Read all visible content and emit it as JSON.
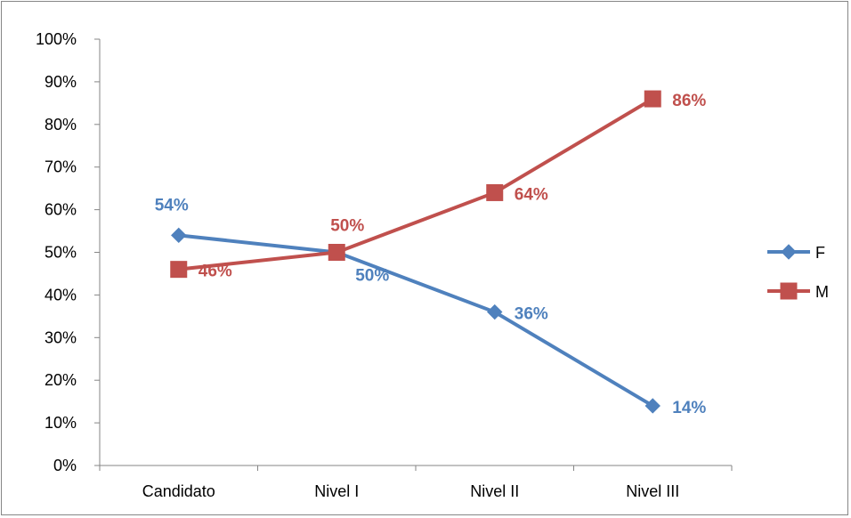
{
  "chart_data": {
    "type": "line",
    "categories": [
      "Candidato",
      "Nivel I",
      "Nivel II",
      "Nivel III"
    ],
    "y_ticks": [
      "0%",
      "10%",
      "20%",
      "30%",
      "40%",
      "50%",
      "60%",
      "70%",
      "80%",
      "90%",
      "100%"
    ],
    "ylim": [
      0,
      100
    ],
    "grid": false,
    "legend_position": "right",
    "series": [
      {
        "name": "F",
        "color": "#4F81BD",
        "marker": "diamond",
        "values": [
          54,
          50,
          36,
          14
        ],
        "labels": [
          "54%",
          "50%",
          "36%",
          "14%"
        ]
      },
      {
        "name": "M",
        "color": "#C0504D",
        "marker": "square",
        "values": [
          46,
          50,
          64,
          86
        ],
        "labels": [
          "46%",
          "50%",
          "64%",
          "86%"
        ]
      }
    ]
  }
}
